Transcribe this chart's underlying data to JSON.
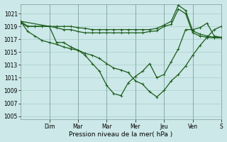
{
  "background_color": "#cce8e8",
  "grid_color": "#aacccc",
  "line_color": "#1a5c1a",
  "marker_color": "#1a5c1a",
  "xlabel": "Pression niveau de la mer( hPa )",
  "ylim": [
    1004.5,
    1022.5
  ],
  "yticks": [
    1005,
    1007,
    1009,
    1011,
    1013,
    1015,
    1017,
    1019,
    1021
  ],
  "day_labels": [
    "Dim",
    "Mar",
    "Mar",
    "Mer",
    "Jeu",
    "Ven",
    "S"
  ],
  "day_positions": [
    2,
    4,
    6,
    8,
    10,
    12,
    14
  ],
  "xlim": [
    0,
    14
  ],
  "series1_x": [
    0,
    0.5,
    1,
    1.5,
    2,
    2.5,
    3,
    3.5,
    4,
    4.5,
    5,
    5.5,
    6,
    6.5,
    7,
    7.5,
    8,
    8.5,
    9,
    9.5,
    10,
    10.5,
    11,
    11.5,
    12,
    12.5,
    13,
    13.5,
    14
  ],
  "series1_y": [
    1019.8,
    1019.0,
    1019.0,
    1019.0,
    1019.0,
    1019.0,
    1019.0,
    1019.0,
    1018.8,
    1018.7,
    1018.5,
    1018.5,
    1018.5,
    1018.5,
    1018.5,
    1018.5,
    1018.5,
    1018.5,
    1018.5,
    1018.7,
    1019.2,
    1019.8,
    1022.3,
    1021.5,
    1018.3,
    1017.8,
    1017.5,
    1017.3,
    1017.2
  ],
  "series2_x": [
    0,
    0.5,
    1,
    1.5,
    2,
    2.5,
    3,
    3.5,
    4,
    4.5,
    5,
    5.5,
    6,
    6.5,
    7,
    7.5,
    8,
    8.5,
    9,
    9.5,
    10,
    10.5,
    11,
    11.5,
    12,
    12.5,
    13,
    13.5,
    14
  ],
  "series2_y": [
    1019.5,
    1019.0,
    1019.0,
    1019.0,
    1019.0,
    1018.8,
    1018.5,
    1018.5,
    1018.2,
    1018.0,
    1018.0,
    1018.0,
    1018.0,
    1018.0,
    1018.0,
    1018.0,
    1018.0,
    1018.0,
    1018.2,
    1018.3,
    1019.0,
    1019.3,
    1021.7,
    1021.0,
    1018.0,
    1017.5,
    1017.3,
    1017.2,
    1017.2
  ],
  "series3_x": [
    0,
    0.5,
    1,
    1.5,
    2,
    2.5,
    3,
    3.5,
    4,
    4.5,
    5,
    5.5,
    6,
    6.5,
    7,
    7.5,
    8,
    8.5,
    9,
    9.5,
    10,
    10.5,
    11,
    11.5,
    12,
    12.5,
    13,
    13.5,
    14
  ],
  "series3_y": [
    1019.8,
    1018.2,
    1017.5,
    1016.8,
    1016.5,
    1016.2,
    1015.8,
    1015.5,
    1015.3,
    1014.8,
    1014.5,
    1014.0,
    1013.2,
    1012.5,
    1012.2,
    1011.8,
    1010.5,
    1010.0,
    1008.8,
    1008.0,
    1009.0,
    1010.5,
    1011.5,
    1012.8,
    1014.5,
    1016.0,
    1017.3,
    1018.5,
    1019.0
  ],
  "series4_x": [
    0,
    2,
    2.5,
    3,
    3.5,
    4,
    4.5,
    5,
    5.5,
    6,
    6.5,
    7,
    7.5,
    8,
    8.5,
    9,
    9.5,
    10,
    10.5,
    11,
    11.5,
    12,
    12.5,
    13,
    13.5,
    14
  ],
  "series4_y": [
    1019.8,
    1019.0,
    1016.5,
    1016.5,
    1015.8,
    1015.3,
    1014.5,
    1013.2,
    1012.0,
    1009.8,
    1008.5,
    1008.2,
    1010.2,
    1011.2,
    1012.0,
    1013.2,
    1011.0,
    1011.5,
    1013.5,
    1015.5,
    1018.5,
    1018.5,
    1018.8,
    1019.5,
    1017.5,
    1017.3
  ]
}
